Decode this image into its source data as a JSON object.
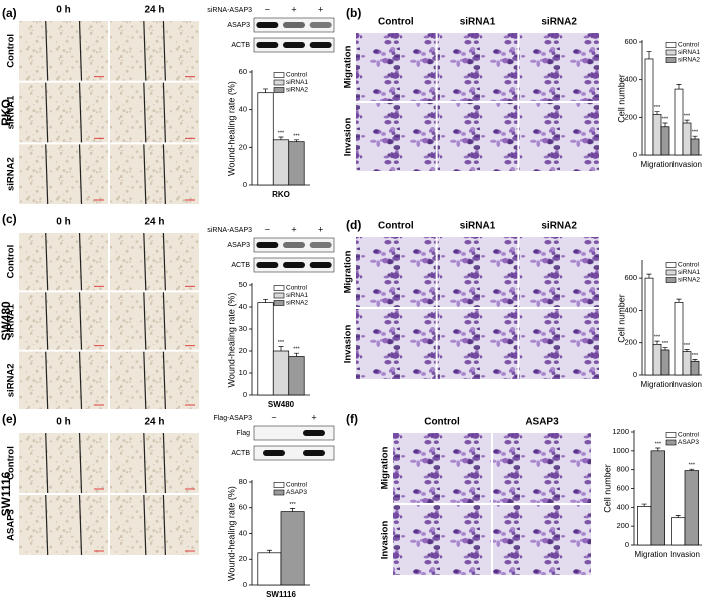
{
  "chart_data": [
    {
      "type": "bar",
      "categories": [
        "RKO"
      ],
      "y_label": "Wound-healing rate (%)",
      "ylim": [
        0,
        60
      ],
      "yticks": [
        0,
        20,
        40,
        60
      ],
      "legend": "upper right",
      "series": [
        {
          "name": "Control",
          "color": "#ffffff",
          "values": [
            49
          ],
          "errors": [
            2
          ]
        },
        {
          "name": "siRNA1",
          "color": "#d9d9d9",
          "values": [
            24
          ],
          "errors": [
            1.5
          ],
          "significance": [
            "***"
          ]
        },
        {
          "name": "siRNA2",
          "color": "#9a9a9a",
          "values": [
            23
          ],
          "errors": [
            1
          ],
          "significance": [
            "***"
          ]
        }
      ]
    },
    {
      "type": "bar",
      "categories": [
        "Migration",
        "Invasion"
      ],
      "y_label": "Cell number",
      "ylim": [
        0,
        600
      ],
      "yticks": [
        0,
        200,
        400,
        600
      ],
      "legend": "upper right",
      "series": [
        {
          "name": "Control",
          "color": "#ffffff",
          "values": [
            510,
            350
          ],
          "errors": [
            40,
            25
          ]
        },
        {
          "name": "siRNA1",
          "color": "#d9d9d9",
          "values": [
            215,
            170
          ],
          "errors": [
            15,
            15
          ],
          "significance": [
            "***",
            "***"
          ]
        },
        {
          "name": "siRNA2",
          "color": "#9a9a9a",
          "values": [
            150,
            85
          ],
          "errors": [
            20,
            15
          ],
          "significance": [
            "***",
            "***"
          ]
        }
      ]
    },
    {
      "type": "bar",
      "categories": [
        "SW480"
      ],
      "y_label": "Wound-healing rate (%)",
      "ylim": [
        0,
        50
      ],
      "yticks": [
        0,
        10,
        20,
        30,
        40,
        50
      ],
      "legend": "upper right",
      "series": [
        {
          "name": "Control",
          "color": "#ffffff",
          "values": [
            42
          ],
          "errors": [
            1.5
          ]
        },
        {
          "name": "siRNA1",
          "color": "#d9d9d9",
          "values": [
            20
          ],
          "errors": [
            2
          ],
          "significance": [
            "***"
          ]
        },
        {
          "name": "siRNA2",
          "color": "#9a9a9a",
          "values": [
            17.5
          ],
          "errors": [
            1.5
          ],
          "significance": [
            "***"
          ]
        }
      ]
    },
    {
      "type": "bar",
      "categories": [
        "Migration",
        "Invasion"
      ],
      "y_label": "Cell number",
      "ylim": [
        0,
        700
      ],
      "yticks": [
        0,
        200,
        400,
        600
      ],
      "legend": "upper right",
      "series": [
        {
          "name": "Control",
          "color": "#ffffff",
          "values": [
            600,
            450
          ],
          "errors": [
            25,
            20
          ]
        },
        {
          "name": "siRNA1",
          "color": "#d9d9d9",
          "values": [
            190,
            145
          ],
          "errors": [
            20,
            12
          ],
          "significance": [
            "***",
            "***"
          ]
        },
        {
          "name": "siRNA2",
          "color": "#9a9a9a",
          "values": [
            155,
            85
          ],
          "errors": [
            15,
            12
          ],
          "significance": [
            "***",
            "***"
          ]
        }
      ]
    },
    {
      "type": "bar",
      "categories": [
        "SW1116"
      ],
      "y_label": "Wound-healing rate (%)",
      "ylim": [
        0,
        80
      ],
      "yticks": [
        0,
        20,
        40,
        60,
        80
      ],
      "legend": "upper right",
      "series": [
        {
          "name": "Control",
          "color": "#ffffff",
          "values": [
            25
          ],
          "errors": [
            2
          ]
        },
        {
          "name": "ASAP3",
          "color": "#9a9a9a",
          "values": [
            57
          ],
          "errors": [
            2.5
          ],
          "significance": [
            "***"
          ]
        }
      ]
    },
    {
      "type": "bar",
      "categories": [
        "Migration",
        "Invasion"
      ],
      "y_label": "Cell number",
      "ylim": [
        0,
        1200
      ],
      "yticks": [
        0,
        200,
        400,
        600,
        800,
        1000,
        1200
      ],
      "legend": "upper right",
      "series": [
        {
          "name": "Control",
          "color": "#ffffff",
          "values": [
            410,
            290
          ],
          "errors": [
            25,
            25
          ]
        },
        {
          "name": "ASAP3",
          "color": "#9a9a9a",
          "values": [
            1000,
            790
          ],
          "errors": [
            30,
            15
          ],
          "significance": [
            "***",
            "***"
          ]
        }
      ]
    }
  ],
  "panels": [
    {
      "label": "(a)",
      "cell_line": "RKO",
      "columns": [
        "0 h",
        "24 h"
      ],
      "rows": [
        "Control",
        "siRNA1",
        "siRNA2"
      ],
      "blot": {
        "treatment": "siRNA-ASAP3",
        "lanes": [
          "−",
          "+",
          "+"
        ],
        "bands": [
          "ASAP3",
          "ACTB"
        ]
      }
    },
    {
      "label": "(b)",
      "columns": [
        "Control",
        "siRNA1",
        "siRNA2"
      ],
      "rows": [
        "Migration",
        "Invasion"
      ]
    },
    {
      "label": "(c)",
      "cell_line": "SW480",
      "columns": [
        "0 h",
        "24 h"
      ],
      "rows": [
        "Control",
        "siRNA1",
        "siRNA2"
      ],
      "blot": {
        "treatment": "siRNA-ASAP3",
        "lanes": [
          "−",
          "+",
          "+"
        ],
        "bands": [
          "ASAP3",
          "ACTB"
        ]
      }
    },
    {
      "label": "(d)",
      "columns": [
        "Control",
        "siRNA1",
        "siRNA2"
      ],
      "rows": [
        "Migration",
        "Invasion"
      ]
    },
    {
      "label": "(e)",
      "cell_line": "SW1116",
      "columns": [
        "0 h",
        "24 h"
      ],
      "rows": [
        "Control",
        "ASAP3"
      ],
      "blot": {
        "treatment": "Flag-ASAP3",
        "lanes": [
          "−",
          "+"
        ],
        "bands": [
          "Flag",
          "ACTB"
        ]
      }
    },
    {
      "label": "(f)",
      "columns": [
        "Control",
        "ASAP3"
      ],
      "rows": [
        "Migration",
        "Invasion"
      ]
    }
  ]
}
